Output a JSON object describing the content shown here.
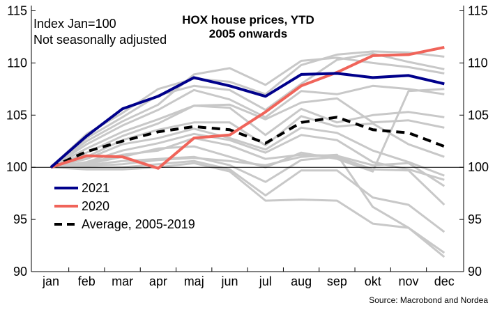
{
  "chart_data": {
    "type": "line",
    "title": "HOX house prices, YTD",
    "subtitle": "2005 onwards",
    "note_lines": [
      "Index Jan=100",
      "Not seasonally adjusted"
    ],
    "source": "Source: Macrobond and Nordea",
    "categories": [
      "jan",
      "feb",
      "mar",
      "apr",
      "maj",
      "jun",
      "jul",
      "aug",
      "sep",
      "okt",
      "nov",
      "dec"
    ],
    "ylim": [
      90,
      115.5
    ],
    "yticks": [
      90,
      95,
      100,
      105,
      110,
      115
    ],
    "reference_line": 100,
    "grid": false,
    "legend_position": "bottom-left",
    "colors": {
      "2021": "#00008b",
      "2020": "#f0645a",
      "average": "#000000",
      "history": "#c8c8c8",
      "axis": "#000000"
    },
    "series": [
      {
        "name": "2021",
        "key": "2021",
        "style": "solid",
        "values": [
          100,
          103.0,
          105.6,
          106.8,
          108.6,
          107.8,
          106.8,
          108.9,
          109.0,
          108.6,
          108.8,
          108.0
        ]
      },
      {
        "name": "2020",
        "key": "2020",
        "style": "solid",
        "values": [
          100,
          101.1,
          101.0,
          99.9,
          102.8,
          103.1,
          105.3,
          107.8,
          109.1,
          110.7,
          110.8,
          111.5
        ]
      },
      {
        "name": "Average, 2005-2019",
        "key": "average",
        "style": "dashed",
        "values": [
          100,
          101.5,
          102.5,
          103.4,
          103.9,
          103.6,
          102.3,
          104.3,
          104.8,
          103.6,
          103.3,
          102.0
        ]
      }
    ],
    "history_series": [
      {
        "values": [
          100,
          103.2,
          105.2,
          107.5,
          108.5,
          108.2,
          107.0,
          109.8,
          110.8,
          111.1,
          111.0,
          110.6
        ]
      },
      {
        "values": [
          100,
          102.8,
          104.8,
          106.9,
          107.8,
          107.4,
          105.5,
          108.0,
          110.3,
          110.9,
          110.1,
          109.4
        ]
      },
      {
        "values": [
          100,
          102.5,
          104.4,
          106.0,
          108.9,
          109.5,
          107.9,
          110.2,
          110.5,
          110.0,
          109.6,
          109.0
        ]
      },
      {
        "values": [
          100,
          102.2,
          104.0,
          105.5,
          107.4,
          106.5,
          104.8,
          107.3,
          107.0,
          107.8,
          107.5,
          107.0
        ]
      },
      {
        "values": [
          100,
          101.8,
          103.4,
          104.6,
          105.9,
          106.0,
          104.6,
          106.2,
          106.6,
          104.3,
          104.5,
          103.8
        ]
      },
      {
        "values": [
          100,
          101.4,
          103.0,
          104.2,
          105.9,
          105.7,
          103.1,
          105.6,
          104.3,
          105.0,
          105.3,
          104.8
        ]
      },
      {
        "values": [
          100,
          101.0,
          102.6,
          103.6,
          104.3,
          104.3,
          102.1,
          104.9,
          103.9,
          104.2,
          102.2,
          101.0
        ]
      },
      {
        "values": [
          100,
          100.8,
          102.2,
          102.8,
          103.7,
          102.8,
          101.7,
          103.8,
          103.3,
          101.6,
          100.5,
          99.2
        ]
      },
      {
        "values": [
          100,
          100.5,
          101.6,
          102.3,
          103.2,
          102.6,
          101.4,
          103.1,
          102.6,
          100.5,
          99.8,
          98.8
        ]
      },
      {
        "values": [
          100,
          100.4,
          101.2,
          101.6,
          102.8,
          102.1,
          100.8,
          101.2,
          101.1,
          100.2,
          100.4,
          98.2
        ]
      },
      {
        "values": [
          100,
          100.2,
          100.6,
          100.8,
          101.0,
          100.2,
          98.6,
          100.7,
          101.0,
          99.8,
          99.7,
          96.4
        ]
      },
      {
        "values": [
          100,
          99.9,
          100.0,
          100.3,
          100.6,
          99.8,
          97.3,
          99.7,
          99.7,
          97.1,
          96.4,
          93.8
        ]
      },
      {
        "values": [
          100,
          99.8,
          99.8,
          100.0,
          100.4,
          99.6,
          96.8,
          96.9,
          96.8,
          94.6,
          94.2,
          91.4
        ]
      },
      {
        "values": [
          100,
          100.1,
          100.3,
          100.7,
          100.9,
          100.6,
          100.2,
          101.0,
          101.2,
          96.2,
          94.2,
          91.8
        ]
      },
      {
        "values": [
          100,
          100.3,
          101.0,
          101.8,
          102.0,
          101.0,
          100.0,
          101.4,
          100.8,
          99.6,
          107.3,
          107.5
        ]
      }
    ]
  }
}
